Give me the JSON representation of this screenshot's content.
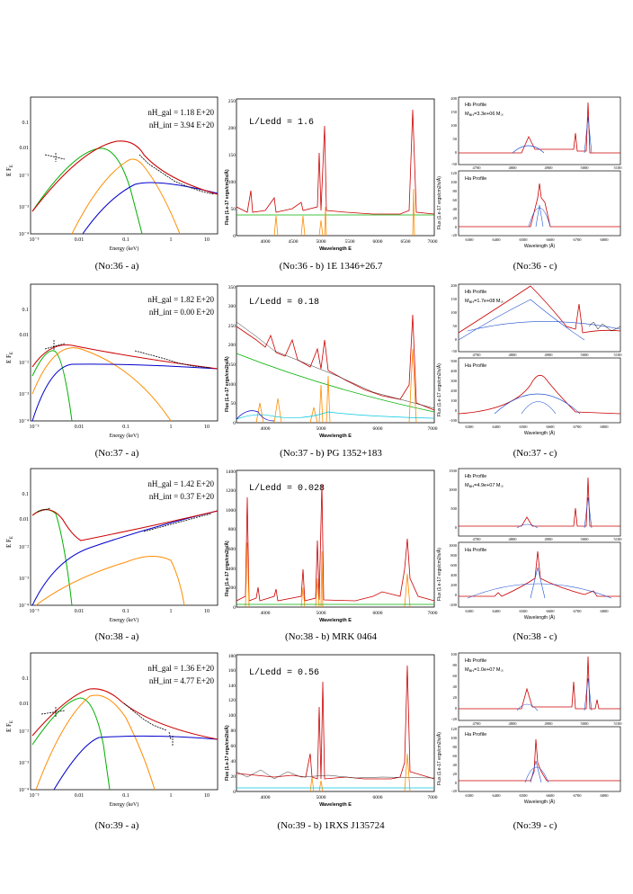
{
  "rows": [
    {
      "id": 36,
      "a": {
        "caption": "(No:36 - a)",
        "nh_gal": "nH_gal = 1.18 E+20",
        "nh_int": "nH_int = 3.94 E+20",
        "ylabel": "E F",
        "ylabel_sub": "E",
        "xlabel": "Energy (keV)",
        "yticks": [
          "10⁻⁴",
          "10⁻³",
          "10⁻²",
          "0.01",
          "0.1"
        ],
        "xticks": [
          "10⁻³",
          "0.01",
          "0.1",
          "1",
          "10"
        ]
      },
      "b": {
        "caption": "(No:36 - b) 1E 1346+26.7",
        "ratio_label": "L/Ledd  =  1.6",
        "ylabel": "Flux (1.e-17 ergs/cm2/s/Å)",
        "xlabel": "Wavelength E",
        "xticks": [
          "4000",
          "4500",
          "5000",
          "5500",
          "6000",
          "6500",
          "7000"
        ],
        "yticks": [
          "0",
          "50",
          "100",
          "150",
          "200",
          "250"
        ]
      },
      "c": {
        "caption": "(No:36 - c)",
        "hb_label": "Hb Profile",
        "mass_label": "M",
        "mass_sub": "BH",
        "mass_value": "=3.3e+06 M",
        "mass_sun": "☉",
        "ha_label": "Ha Profile",
        "ylabel": "Flux (1.e-17 ergs/cm2/s/Å)",
        "xlabel": "Wavelength (Å)",
        "top_yticks": [
          "200",
          "150",
          "100",
          "50",
          "0",
          "-50"
        ],
        "bot_yticks": [
          "120",
          "100",
          "80",
          "60",
          "40",
          "20",
          "0",
          "-20"
        ],
        "top_xticks": [
          "4700",
          "4800",
          "4900",
          "5000",
          "5100"
        ],
        "bot_xticks": [
          "6300",
          "6400",
          "6500",
          "6600",
          "6700",
          "6800"
        ]
      }
    },
    {
      "id": 37,
      "a": {
        "caption": "(No:37 - a)",
        "nh_gal": "nH_gal = 1.82 E+20",
        "nh_int": "nH_int = 0.00 E+20",
        "ylabel": "E F",
        "ylabel_sub": "E",
        "xlabel": "Energy (keV)",
        "yticks": [
          "10⁻⁴",
          "10⁻³",
          "10⁻²",
          "0.01",
          "0.1"
        ],
        "xticks": [
          "10⁻³",
          "0.01",
          "0.1",
          "1",
          "10"
        ]
      },
      "b": {
        "caption": "(No:37 - b) PG 1352+183",
        "ratio_label": "L/Ledd  =  0.18",
        "ylabel": "Flux (1.e-17 ergs/cm2/s/Å)",
        "xlabel": "Wavelength E",
        "xticks": [
          "4000",
          "5000",
          "6000",
          "7000"
        ],
        "yticks": [
          "0",
          "50",
          "100",
          "150",
          "200",
          "250",
          "300",
          "350"
        ]
      },
      "c": {
        "caption": "(No:37 - c)",
        "hb_label": "Hb Profile",
        "mass_label": "M",
        "mass_sub": "BH",
        "mass_value": "=1.7e+08 M",
        "mass_sun": "☉",
        "ha_label": "Ha Profile",
        "ylabel": "Flux (1.e-17 ergs/cm2/s/Å)",
        "xlabel": "Wavelength (Å)",
        "top_yticks": [
          "200",
          "150",
          "100",
          "50",
          "0",
          "-50"
        ],
        "bot_yticks": [
          "500",
          "400",
          "300",
          "200",
          "100",
          "0",
          "-100"
        ],
        "top_xticks": [
          "4700",
          "4800",
          "4900",
          "5000",
          "5100"
        ],
        "bot_xticks": [
          "6300",
          "6400",
          "6500",
          "6600",
          "6700",
          "6800"
        ]
      }
    },
    {
      "id": 38,
      "a": {
        "caption": "(No:38 - a)",
        "nh_gal": "nH_gal = 1.42 E+20",
        "nh_int": "nH_int = 0.37 E+20",
        "ylabel": "E F",
        "ylabel_sub": "E",
        "xlabel": "Energy (keV)",
        "yticks": [
          "10⁻⁴",
          "10⁻³",
          "10⁻²",
          "0.01",
          "0.1"
        ],
        "xticks": [
          "10⁻³",
          "0.01",
          "0.1",
          "1",
          "10"
        ]
      },
      "b": {
        "caption": "(No:38 - b) MRK 0464",
        "ratio_label": "L/Ledd  =  0.028",
        "ylabel": "Flux (1.e-17 ergs/cm2/s/Å)",
        "xlabel": "Wavelength E",
        "xticks": [
          "4000",
          "5000",
          "6000",
          "7000"
        ],
        "yticks": [
          "0",
          "200",
          "400",
          "600",
          "800",
          "1000",
          "1200",
          "1400"
        ]
      },
      "c": {
        "caption": "(No:38 - c)",
        "hb_label": "Hb Profile",
        "mass_label": "M",
        "mass_sub": "BH",
        "mass_value": "=4.9e+07 M",
        "mass_sun": "☉",
        "ha_label": "Ha Profile",
        "ylabel": "Flux (1.e-17 ergs/cm2/s/Å)",
        "xlabel": "Wavelength (Å)",
        "top_yticks": [
          "1500",
          "1000",
          "500",
          "0"
        ],
        "bot_yticks": [
          "1000",
          "800",
          "600",
          "400",
          "200",
          "0",
          "-200"
        ],
        "top_xticks": [
          "4700",
          "4800",
          "4900",
          "5000",
          "5100"
        ],
        "bot_xticks": [
          "6300",
          "6400",
          "6500",
          "6600",
          "6700",
          "6800"
        ]
      }
    },
    {
      "id": 39,
      "a": {
        "caption": "(No:39 - a)",
        "nh_gal": "nH_gal = 1.36 E+20",
        "nh_int": "nH_int = 4.77 E+20",
        "ylabel": "E F",
        "ylabel_sub": "E",
        "xlabel": "Energy (keV)",
        "yticks": [
          "10⁻⁴",
          "10⁻³",
          "10⁻²",
          "0.01",
          "0.1"
        ],
        "xticks": [
          "10⁻³",
          "0.01",
          "0.1",
          "1",
          "10"
        ]
      },
      "b": {
        "caption": "(No:39 - b) 1RXS J135724",
        "ratio_label": "L/Ledd  =  0.56",
        "ylabel": "Flux (1.e-17 ergs/cm2/s/Å)",
        "xlabel": "Wavelength E",
        "xticks": [
          "4000",
          "5000",
          "6000",
          "7000"
        ],
        "yticks": [
          "0",
          "20",
          "40",
          "60",
          "80",
          "100",
          "120",
          "140",
          "160",
          "180"
        ]
      },
      "c": {
        "caption": "(No:39 - c)",
        "hb_label": "Hb Profile",
        "mass_label": "M",
        "mass_sub": "BH",
        "mass_value": "=1.0e+07 M",
        "mass_sun": "☉",
        "ha_label": "Ha Profile",
        "ylabel": "Flux (1.e-17 ergs/cm2/s/Å)",
        "xlabel": "Wavelength (Å)",
        "top_yticks": [
          "100",
          "80",
          "60",
          "40",
          "20",
          "0",
          "-20"
        ],
        "bot_yticks": [
          "120",
          "100",
          "80",
          "60",
          "40",
          "20",
          "0",
          "-20"
        ],
        "top_xticks": [
          "4700",
          "4800",
          "4900",
          "5000",
          "5100"
        ],
        "bot_xticks": [
          "6300",
          "6400",
          "6500",
          "6600",
          "6700",
          "6800"
        ]
      }
    }
  ],
  "chart_data": [
    {
      "type": "line",
      "panel": "No:36-a",
      "xscale": "log",
      "yscale": "log",
      "xlabel": "Energy (keV)",
      "ylabel": "E F_E",
      "series": [
        {
          "color": "#00b000"
        },
        {
          "color": "#ff8c00"
        },
        {
          "color": "#0000cc"
        },
        {
          "color": "#cc0000"
        },
        {
          "color": "#000000"
        }
      ]
    },
    {
      "type": "line",
      "panel": "No:36-b",
      "xlim": [
        3500,
        7000
      ],
      "ylim": [
        0,
        250
      ],
      "xlabel": "Wavelength E"
    },
    {
      "type": "line",
      "panel": "No:36-c",
      "hb_xlim": [
        4700,
        5100
      ],
      "ha_xlim": [
        6250,
        6850
      ]
    },
    {
      "type": "line",
      "panel": "No:37-a",
      "xscale": "log",
      "yscale": "log"
    },
    {
      "type": "line",
      "panel": "No:37-b",
      "xlim": [
        3500,
        7000
      ],
      "ylim": [
        0,
        350
      ]
    },
    {
      "type": "line",
      "panel": "No:37-c",
      "hb_xlim": [
        4700,
        5100
      ],
      "ha_xlim": [
        6250,
        6850
      ]
    },
    {
      "type": "line",
      "panel": "No:38-a",
      "xscale": "log",
      "yscale": "log"
    },
    {
      "type": "line",
      "panel": "No:38-b",
      "xlim": [
        3500,
        7000
      ],
      "ylim": [
        0,
        1400
      ]
    },
    {
      "type": "line",
      "panel": "No:38-c",
      "hb_xlim": [
        4700,
        5100
      ],
      "ha_xlim": [
        6250,
        6850
      ]
    },
    {
      "type": "line",
      "panel": "No:39-a",
      "xscale": "log",
      "yscale": "log"
    },
    {
      "type": "line",
      "panel": "No:39-b",
      "xlim": [
        3500,
        7000
      ],
      "ylim": [
        0,
        180
      ]
    },
    {
      "type": "line",
      "panel": "No:39-c",
      "hb_xlim": [
        4700,
        5100
      ],
      "ha_xlim": [
        6250,
        6850
      ]
    }
  ]
}
